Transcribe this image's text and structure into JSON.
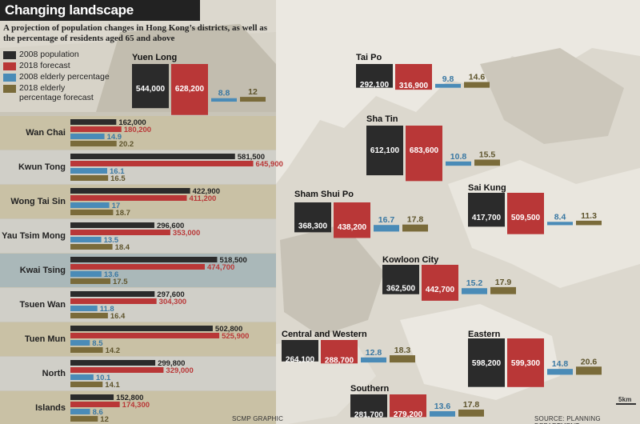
{
  "title": "Changing landscape",
  "subtitle": "A projection of population changes in Hong Kong’s districts, as well as the percentage of residents aged 65 and above",
  "credits": {
    "left": "SCMP GRAPHIC",
    "right": "SOURCE: PLANNING DEPARTMENT",
    "scale": "5km"
  },
  "colors": {
    "population_2008": "#2b2b2b",
    "forecast_2018": "#b93737",
    "elderly_2008": "#4a8bb7",
    "elderly_2018": "#7a6b3a"
  },
  "legend": [
    {
      "label": "2008 population",
      "color": "#2b2b2b"
    },
    {
      "label": "2018 forecast",
      "color": "#b93737"
    },
    {
      "label": "2008 elderly percentage",
      "color": "#4a8bb7"
    },
    {
      "label": "2018 elderly percentage forecast",
      "color": "#7a6b3a"
    }
  ],
  "chart_data": [
    {
      "type": "bar",
      "orientation": "horizontal",
      "categories": [
        "Wan Chai",
        "Kwun Tong",
        "Wong Tai Sin",
        "Yau Tsim Mong",
        "Kwai Tsing",
        "Tsuen Wan",
        "Tuen Mun",
        "North",
        "Islands"
      ],
      "series": [
        {
          "name": "2008 population",
          "values": [
            162000,
            581500,
            422900,
            296600,
            518500,
            297600,
            502800,
            299800,
            152800
          ]
        },
        {
          "name": "2018 forecast",
          "values": [
            180200,
            645900,
            411200,
            353000,
            474700,
            304300,
            525900,
            329000,
            174300
          ]
        },
        {
          "name": "2008 elderly percentage",
          "values": [
            14.9,
            16.1,
            17,
            13.5,
            13.6,
            11.8,
            8.5,
            10.1,
            8.6
          ]
        },
        {
          "name": "2018 elderly percentage forecast",
          "values": [
            20.2,
            16.5,
            18.7,
            18.4,
            17.5,
            16.4,
            14.2,
            14.1,
            12
          ]
        }
      ],
      "labels": {
        "population_2008": [
          "162,000",
          "581,500",
          "422,900",
          "296,600",
          "518,500",
          "297,600",
          "502,800",
          "299,800",
          "152,800"
        ],
        "forecast_2018": [
          "180,200",
          "645,900",
          "411,200",
          "353,000",
          "474,700",
          "304,300",
          "525,900",
          "329,000",
          "174,300"
        ],
        "elderly_2008": [
          "14.9",
          "16.1",
          "17",
          "13.5",
          "13.6",
          "11.8",
          "8.5",
          "10.1",
          "8.6"
        ],
        "elderly_2018": [
          "20.2",
          "16.5",
          "18.7",
          "18.4",
          "17.5",
          "16.4",
          "14.2",
          "14.1",
          "12"
        ]
      }
    },
    {
      "type": "bar",
      "categories": [
        "Yuen Long",
        "Tai Po",
        "Sha Tin",
        "Sham Shui Po",
        "Sai Kung",
        "Kowloon City",
        "Central and Western",
        "Eastern",
        "Southern"
      ],
      "series": [
        {
          "name": "2008 population",
          "values": [
            544000,
            292100,
            612100,
            368300,
            417700,
            362500,
            264100,
            598200,
            281700
          ]
        },
        {
          "name": "2018 forecast",
          "values": [
            628200,
            316900,
            683600,
            438200,
            509500,
            442700,
            288700,
            599300,
            279200
          ]
        },
        {
          "name": "2008 elderly percentage",
          "values": [
            8.8,
            9.8,
            10.8,
            16.7,
            8.4,
            15.2,
            12.8,
            14.8,
            13.6
          ]
        },
        {
          "name": "2018 elderly percentage forecast",
          "values": [
            12,
            14.6,
            15.5,
            17.8,
            11.3,
            17.9,
            18.3,
            20.6,
            17.8
          ]
        }
      ],
      "labels": {
        "population_2008": [
          "544,000",
          "292,100",
          "612,100",
          "368,300",
          "417,700",
          "362,500",
          "264,100",
          "598,200",
          "281,700"
        ],
        "forecast_2018": [
          "628,200",
          "316,900",
          "683,600",
          "438,200",
          "509,500",
          "442,700",
          "288,700",
          "599,300",
          "279,200"
        ],
        "elderly_2008": [
          "8.8",
          "9.8",
          "10.8",
          "16.7",
          "8.4",
          "15.2",
          "12.8",
          "14.8",
          "13.6"
        ],
        "elderly_2018": [
          "12",
          "14.6",
          "15.5",
          "17.8",
          "11.3",
          "17.9",
          "18.3",
          "20.6",
          "17.8"
        ]
      }
    }
  ]
}
